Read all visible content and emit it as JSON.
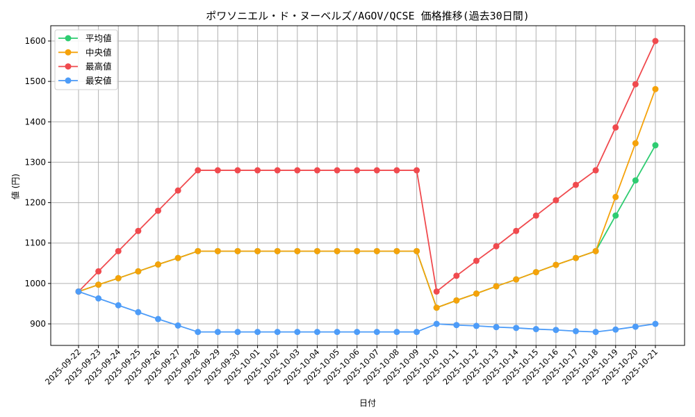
{
  "chart_data": {
    "type": "line",
    "title": "ポワソニエル・ド・ヌーベルズ/AGOV/QCSE 価格推移(過去30日間)",
    "xlabel": "日付",
    "ylabel": "値 (円)",
    "ylim": [
      845,
      1635
    ],
    "yticks": [
      900,
      1000,
      1100,
      1200,
      1300,
      1400,
      1500,
      1600
    ],
    "grid": true,
    "legend_position": "upper left",
    "categories": [
      "2025-09-22",
      "2025-09-23",
      "2025-09-24",
      "2025-09-25",
      "2025-09-26",
      "2025-09-27",
      "2025-09-28",
      "2025-09-29",
      "2025-09-30",
      "2025-10-01",
      "2025-10-02",
      "2025-10-03",
      "2025-10-04",
      "2025-10-05",
      "2025-10-06",
      "2025-10-07",
      "2025-10-08",
      "2025-10-09",
      "2025-10-10",
      "2025-10-11",
      "2025-10-12",
      "2025-10-13",
      "2025-10-14",
      "2025-10-15",
      "2025-10-16",
      "2025-10-17",
      "2025-10-18",
      "2025-10-19",
      "2025-10-20",
      "2025-10-21"
    ],
    "series": [
      {
        "name": "平均値",
        "color": "#2ecc71",
        "values": [
          980,
          997,
          1013,
          1030,
          1047,
          1063,
          1080,
          1080,
          1080,
          1080,
          1080,
          1080,
          1080,
          1080,
          1080,
          1080,
          1080,
          1080,
          940,
          958,
          975,
          993,
          1010,
          1028,
          1046,
          1063,
          1080,
          1168,
          1255,
          1342
        ]
      },
      {
        "name": "中央値",
        "color": "#f5a20a",
        "values": [
          980,
          997,
          1013,
          1030,
          1047,
          1063,
          1080,
          1080,
          1080,
          1080,
          1080,
          1080,
          1080,
          1080,
          1080,
          1080,
          1080,
          1080,
          940,
          958,
          975,
          993,
          1010,
          1028,
          1046,
          1063,
          1080,
          1214,
          1347,
          1481
        ]
      },
      {
        "name": "最高値",
        "color": "#f04a4e",
        "values": [
          980,
          1030,
          1080,
          1130,
          1180,
          1230,
          1280,
          1280,
          1280,
          1280,
          1280,
          1280,
          1280,
          1280,
          1280,
          1280,
          1280,
          1280,
          980,
          1019,
          1056,
          1092,
          1130,
          1168,
          1206,
          1244,
          1280,
          1386,
          1493,
          1600
        ]
      },
      {
        "name": "最安値",
        "color": "#4d9cf8",
        "values": [
          980,
          963,
          946,
          929,
          912,
          896,
          880,
          880,
          880,
          880,
          880,
          880,
          880,
          880,
          880,
          880,
          880,
          880,
          900,
          897,
          895,
          892,
          890,
          887,
          885,
          882,
          880,
          886,
          893,
          900
        ]
      }
    ]
  }
}
